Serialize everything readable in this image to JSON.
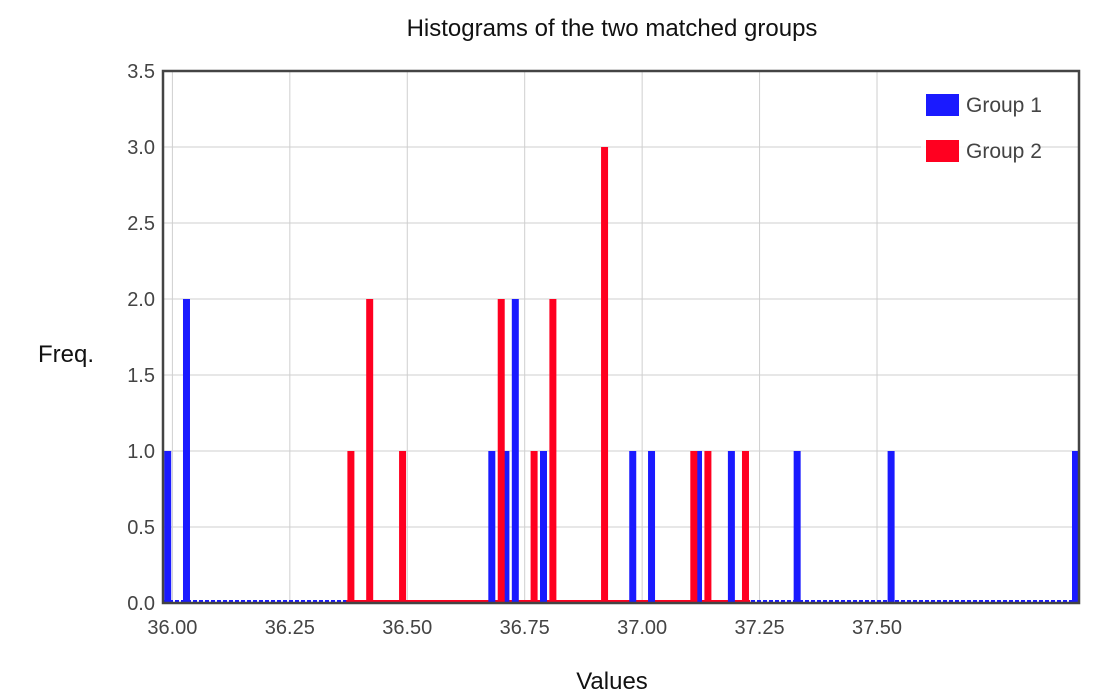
{
  "chart_data": {
    "type": "bar",
    "title": "Histograms of the two matched groups",
    "xlabel": "Values",
    "ylabel": "Freq.",
    "xlim": [
      35.98,
      37.93
    ],
    "ylim": [
      0,
      3.5
    ],
    "xticks": [
      "36.00",
      "36.25",
      "36.50",
      "36.75",
      "37.00",
      "37.25",
      "37.50"
    ],
    "yticks": [
      "0.0",
      "0.5",
      "1.0",
      "1.5",
      "2.0",
      "2.5",
      "3.0",
      "3.5"
    ],
    "grid": true,
    "legend_position": "top-right",
    "series": [
      {
        "name": "Group 1",
        "color": "#1a1aff",
        "points": [
          {
            "x": 35.99,
            "y": 1
          },
          {
            "x": 36.03,
            "y": 2
          },
          {
            "x": 36.68,
            "y": 1
          },
          {
            "x": 36.71,
            "y": 1
          },
          {
            "x": 36.73,
            "y": 2
          },
          {
            "x": 36.79,
            "y": 1
          },
          {
            "x": 36.98,
            "y": 1
          },
          {
            "x": 37.02,
            "y": 1
          },
          {
            "x": 37.12,
            "y": 1
          },
          {
            "x": 37.19,
            "y": 1
          },
          {
            "x": 37.33,
            "y": 1
          },
          {
            "x": 37.53,
            "y": 1
          },
          {
            "x": 37.93,
            "y": 1
          }
        ]
      },
      {
        "name": "Group 2",
        "color": "#ff0020",
        "points": [
          {
            "x": 36.38,
            "y": 1
          },
          {
            "x": 36.42,
            "y": 2
          },
          {
            "x": 36.49,
            "y": 1
          },
          {
            "x": 36.7,
            "y": 2
          },
          {
            "x": 36.77,
            "y": 1
          },
          {
            "x": 36.81,
            "y": 2
          },
          {
            "x": 36.92,
            "y": 3
          },
          {
            "x": 37.11,
            "y": 1
          },
          {
            "x": 37.14,
            "y": 1
          },
          {
            "x": 37.22,
            "y": 1
          }
        ]
      }
    ]
  }
}
